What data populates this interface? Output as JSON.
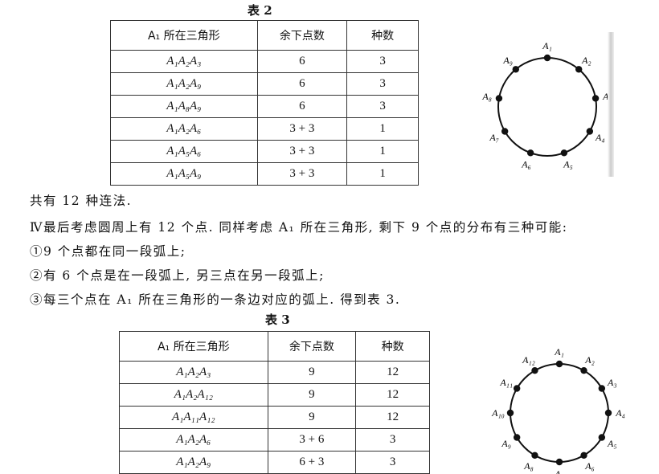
{
  "table2": {
    "caption": "表 2",
    "headers": [
      "A₁ 所在三角形",
      "余下点数",
      "种数"
    ],
    "rows": [
      [
        "A₁A₂A₃",
        "6",
        "3"
      ],
      [
        "A₁A₂A₉",
        "6",
        "3"
      ],
      [
        "A₁A₈A₉",
        "6",
        "3"
      ],
      [
        "A₁A₂A₆",
        "3 + 3",
        "1"
      ],
      [
        "A₁A₅A₆",
        "3 + 3",
        "1"
      ],
      [
        "A₁A₅A₉",
        "3 + 3",
        "1"
      ]
    ]
  },
  "circle9": {
    "labels": [
      "A₁",
      "A₂",
      "A₃",
      "A₄",
      "A₅",
      "A₆",
      "A₇",
      "A₈",
      "A₉"
    ]
  },
  "text": {
    "line1": "共有 12 种连法.",
    "line2": "Ⅳ最后考虑圆周上有 12 个点. 同样考虑 A₁ 所在三角形, 剩下 9 个点的分布有三种可能:",
    "line3": "①9 个点都在同一段弧上;",
    "line4": "②有 6 个点是在一段弧上, 另三点在另一段弧上;",
    "line5": "③每三个点在 A₁ 所在三角形的一条边对应的弧上. 得到表 3."
  },
  "table3": {
    "caption": "表 3",
    "headers": [
      "A₁ 所在三角形",
      "余下点数",
      "种数"
    ],
    "rows": [
      [
        "A₁A₂A₃",
        "9",
        "12"
      ],
      [
        "A₁A₂A₁₂",
        "9",
        "12"
      ],
      [
        "A₁A₁₁A₁₂",
        "9",
        "12"
      ],
      [
        "A₁A₂A₆",
        "3 + 6",
        "3"
      ],
      [
        "A₁A₂A₉",
        "6 + 3",
        "3"
      ]
    ]
  },
  "circle12": {
    "labels": [
      "A₁",
      "A₂",
      "A₃",
      "A₄",
      "A₅",
      "A₆",
      "A₇",
      "A₈",
      "A₉",
      "A₁₀",
      "A₁₁",
      "A₁₂"
    ]
  }
}
